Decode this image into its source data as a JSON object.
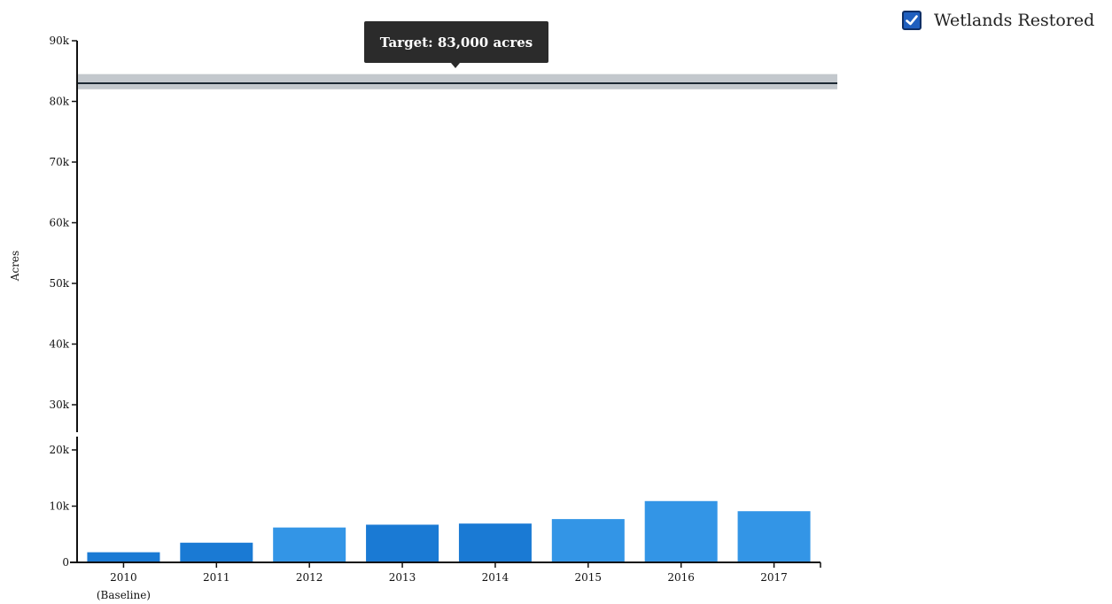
{
  "legend": {
    "label": "Wetlands Restored",
    "checked": true,
    "color": "#1f5fbf"
  },
  "tooltip": {
    "text": "Target: 83,000 acres"
  },
  "chart_data": {
    "type": "bar",
    "ylabel": "Acres",
    "axis_break": true,
    "upper_yticks": [
      "30k",
      "40k",
      "50k",
      "60k",
      "70k",
      "80k",
      "90k"
    ],
    "upper_ytick_values": [
      30000,
      40000,
      50000,
      60000,
      70000,
      80000,
      90000
    ],
    "lower_yticks": [
      "0",
      "10k",
      "20k"
    ],
    "lower_ytick_values": [
      0,
      10000,
      20000
    ],
    "ylim": [
      0,
      90000
    ],
    "categories": [
      {
        "label": "2010",
        "sublabel": "(Baseline)"
      },
      {
        "label": "2011"
      },
      {
        "label": "2012"
      },
      {
        "label": "2013"
      },
      {
        "label": "2014"
      },
      {
        "label": "2015"
      },
      {
        "label": "2016"
      },
      {
        "label": "2017"
      }
    ],
    "values": [
      1800,
      3500,
      6200,
      6700,
      6900,
      7700,
      10900,
      9100
    ],
    "bar_colors": [
      "#1a7ad4",
      "#1a7ad4",
      "#3395e6",
      "#1a7ad4",
      "#1a7ad4",
      "#3395e6",
      "#3395e6",
      "#3395e6"
    ],
    "target": {
      "value": 83000,
      "band": [
        82000,
        84500
      ],
      "line_color": "#1c2833",
      "band_color": "#c3c8cd"
    }
  }
}
